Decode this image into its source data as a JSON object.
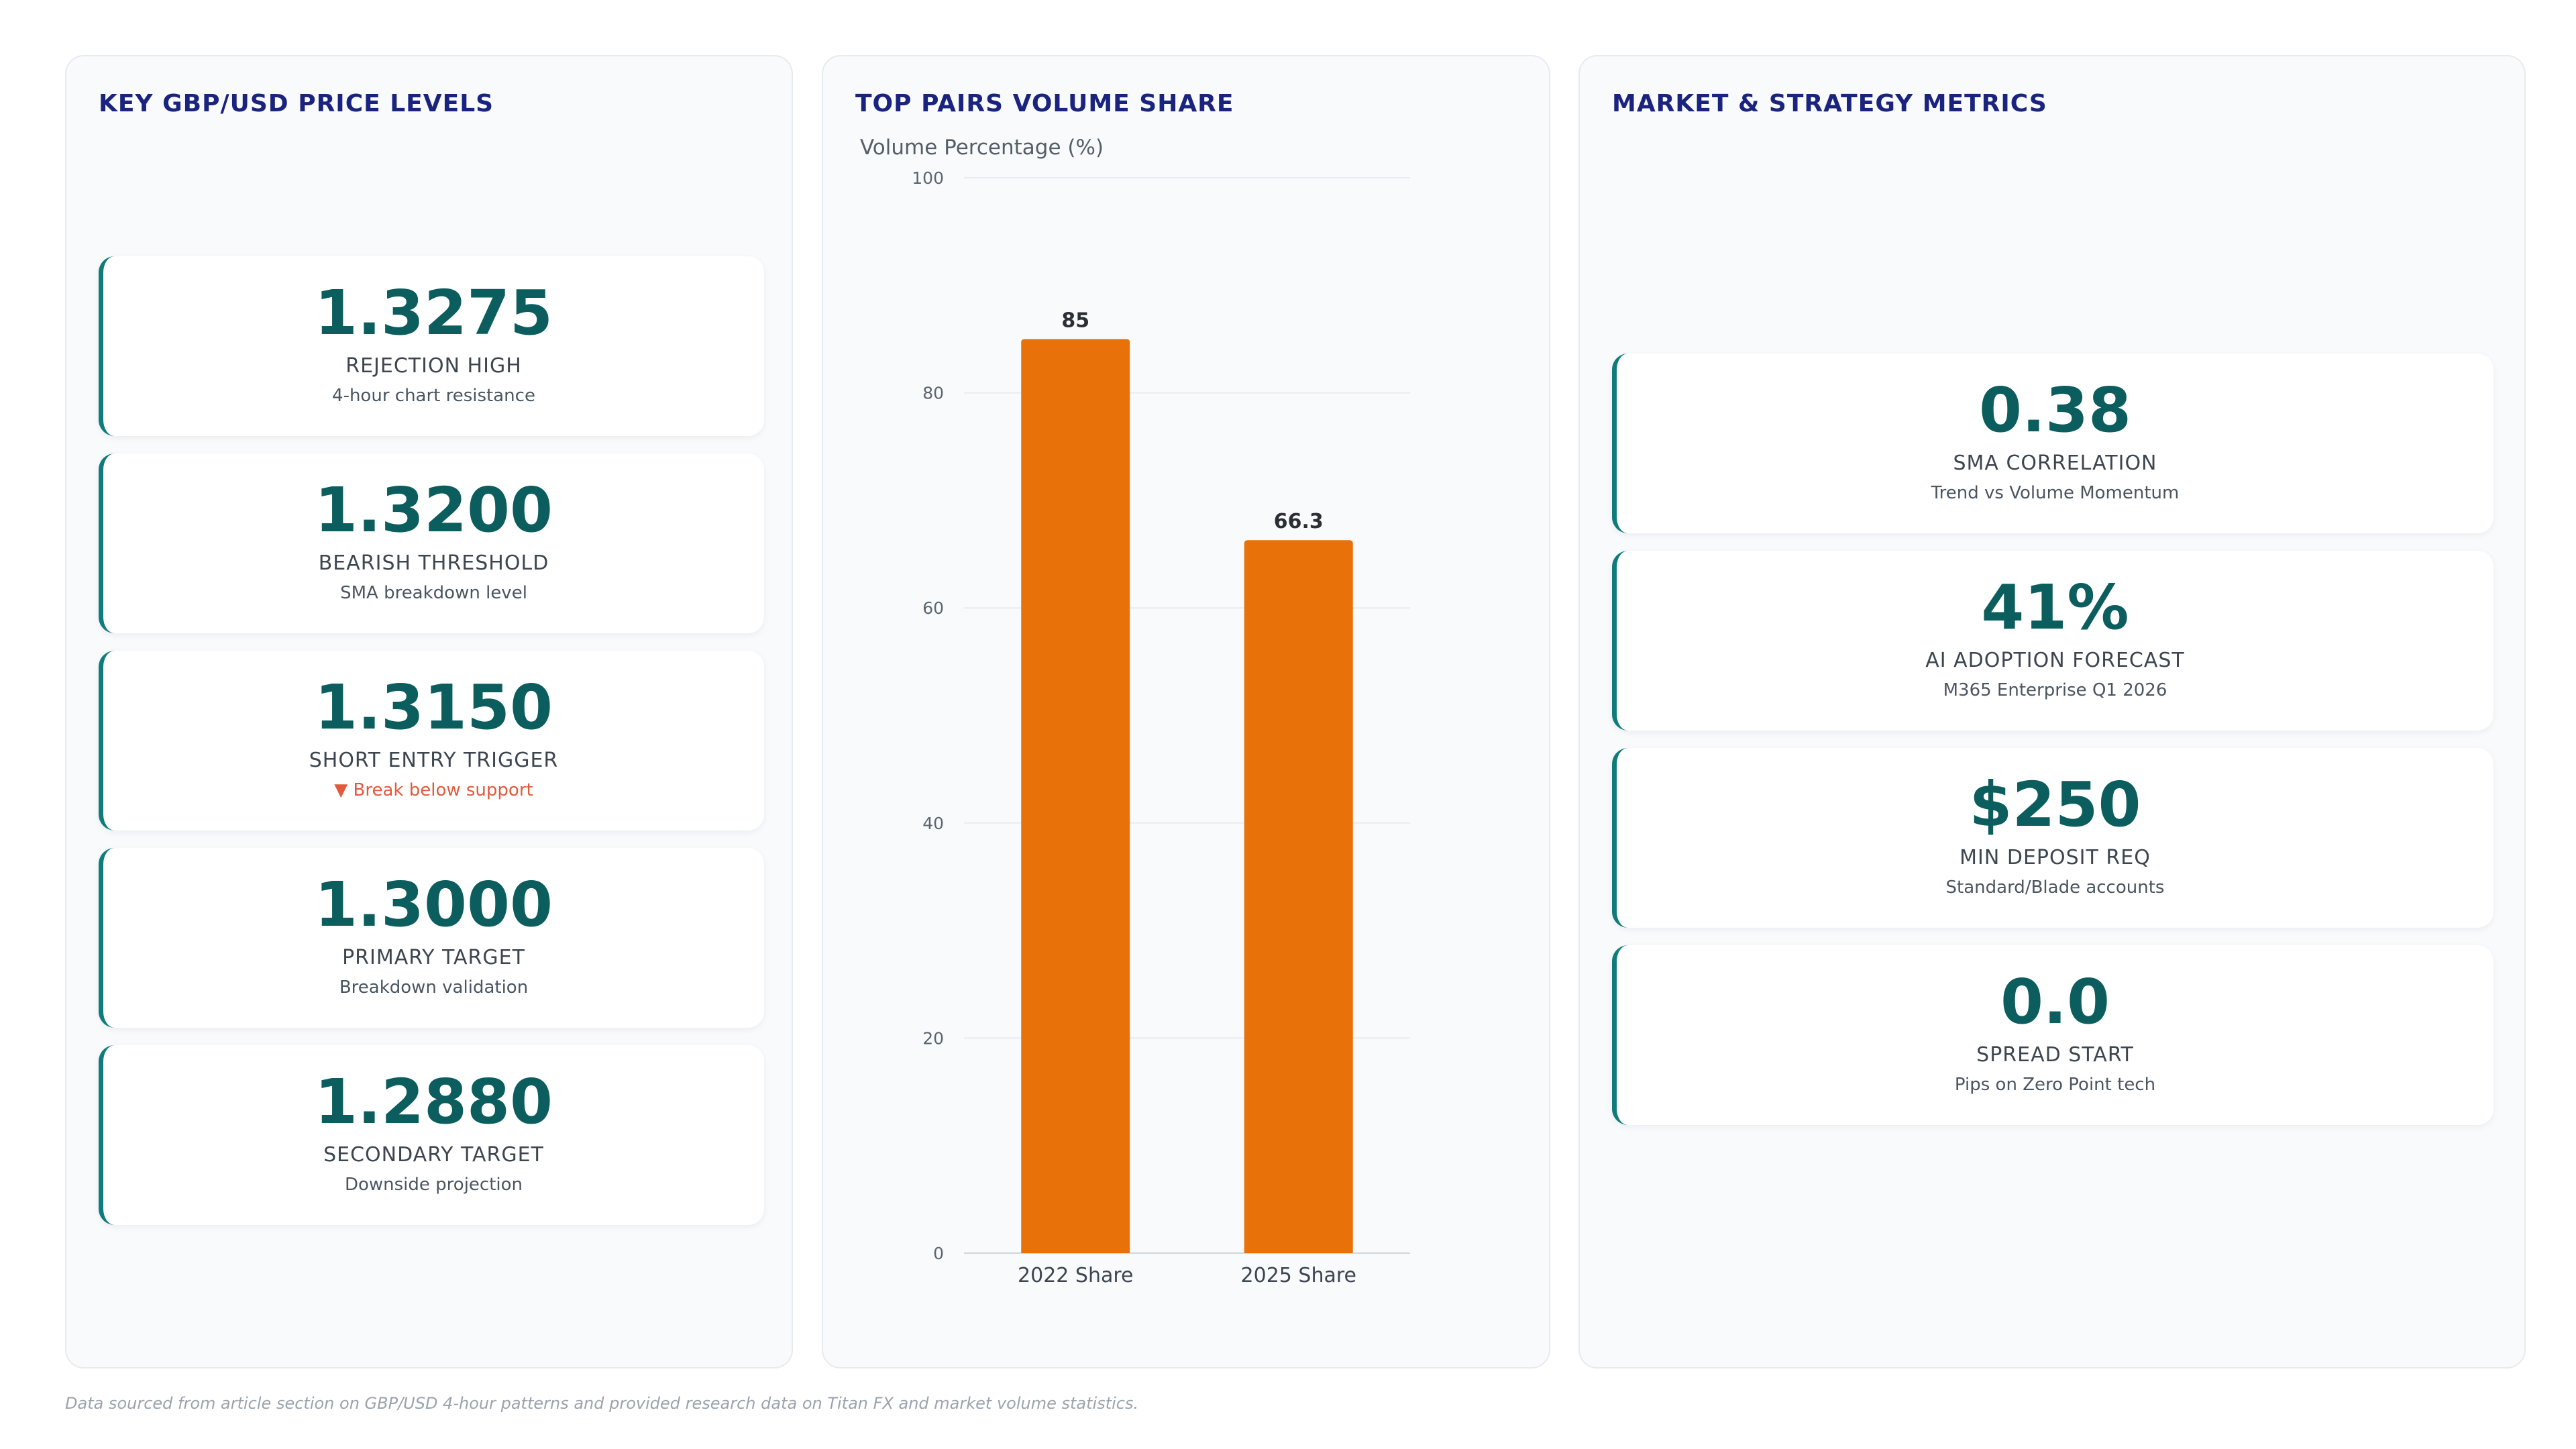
{
  "price_levels": {
    "title": "KEY GBP/USD PRICE LEVELS",
    "cards": [
      {
        "value": "1.3275",
        "label": "REJECTION HIGH",
        "sub": "4-hour chart resistance"
      },
      {
        "value": "1.3200",
        "label": "BEARISH THRESHOLD",
        "sub": "SMA breakdown level"
      },
      {
        "value": "1.3150",
        "label": "SHORT ENTRY TRIGGER",
        "sub": "▼ Break below support",
        "sub_color": "#e05a3b"
      },
      {
        "value": "1.3000",
        "label": "PRIMARY TARGET",
        "sub": "Breakdown validation"
      },
      {
        "value": "1.2880",
        "label": "SECONDARY TARGET",
        "sub": "Downside projection"
      }
    ]
  },
  "volume_panel": {
    "title": "TOP PAIRS VOLUME SHARE"
  },
  "chart_data": {
    "type": "bar",
    "categories": [
      "2022 Share",
      "2025 Share"
    ],
    "values": [
      85,
      66.3
    ],
    "data_labels": [
      "85",
      "66.3"
    ],
    "ylabel": "Volume Percentage (%)",
    "ylim": [
      0,
      100
    ],
    "yticks": [
      0,
      20,
      40,
      60,
      80,
      100
    ],
    "grid": true,
    "legend": "none",
    "bar_color": "#e8710a"
  },
  "metrics": {
    "title": "MARKET & STRATEGY METRICS",
    "cards": [
      {
        "value": "0.38",
        "label": "SMA CORRELATION",
        "sub": "Trend vs Volume Momentum"
      },
      {
        "value": "41%",
        "label": "AI ADOPTION FORECAST",
        "sub": "M365 Enterprise Q1 2026"
      },
      {
        "value": "$250",
        "label": "MIN DEPOSIT REQ",
        "sub": "Standard/Blade accounts"
      },
      {
        "value": "0.0",
        "label": "SPREAD START",
        "sub": "Pips on Zero Point tech"
      }
    ]
  },
  "colors": {
    "accent": "#0e7c7b",
    "value_text": "#0b5e5d",
    "title_text": "#1a237e",
    "alert": "#e05a3b"
  },
  "footnote": "Data sourced from article section on GBP/USD 4-hour patterns and provided research data on Titan FX and market volume statistics."
}
